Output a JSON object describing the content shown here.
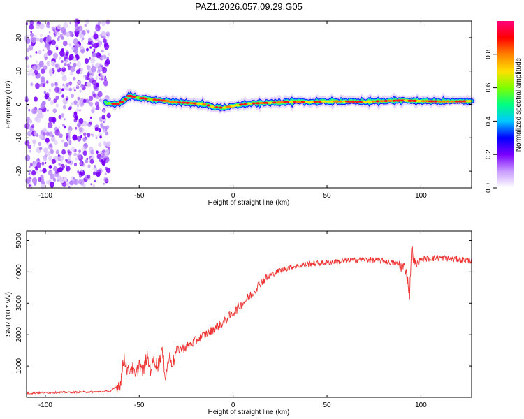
{
  "title": "PAZ1.2026.057.09.29.G05",
  "chart_data": [
    {
      "type": "heatmap",
      "name": "spectrogram",
      "xlabel": "Height of straight line (km)",
      "ylabel": "Frequency (Hz)",
      "xlim": [
        -110,
        127
      ],
      "ylim": [
        -25,
        25
      ],
      "xticks": [
        -100,
        -50,
        0,
        50,
        100
      ],
      "yticks": [
        -20,
        -10,
        0,
        10,
        20
      ],
      "noise_region_x": [
        -110,
        -66
      ],
      "ridge": {
        "x": [
          -68,
          -62,
          -58,
          -55,
          -50,
          -45,
          -40,
          -35,
          -30,
          -25,
          -20,
          -15,
          -10,
          -5,
          0,
          5,
          10,
          15,
          20,
          25,
          30,
          40,
          50,
          60,
          70,
          80,
          90,
          100,
          110,
          120,
          127
        ],
        "freq": [
          0.5,
          0.0,
          1.2,
          2.5,
          2.0,
          1.5,
          1.3,
          1.0,
          0.6,
          0.5,
          0.3,
          0.0,
          -0.8,
          -1.0,
          -0.5,
          0.0,
          0.3,
          0.4,
          0.5,
          0.6,
          0.8,
          0.8,
          0.9,
          0.9,
          0.8,
          1.0,
          1.2,
          1.0,
          0.9,
          0.9,
          1.0
        ]
      },
      "colorbar": {
        "label": "Normalized spectral amplitude",
        "range": [
          0,
          1
        ],
        "ticks": [
          "0.0",
          "0.2",
          "0.4",
          "0.6",
          "0.8"
        ],
        "tick_values": [
          0.0,
          0.2,
          0.4,
          0.6,
          0.8
        ],
        "colors": [
          "#ffffff",
          "#c89bff",
          "#7a00ff",
          "#0000ff",
          "#00c8ff",
          "#00ff80",
          "#80ff00",
          "#ffe000",
          "#ff8000",
          "#ff0000",
          "#ff0080"
        ]
      }
    },
    {
      "type": "line",
      "name": "snr",
      "xlabel": "Height of straight line (km)",
      "ylabel": "SNR (10 * v/v)",
      "xlim": [
        -110,
        127
      ],
      "ylim": [
        0,
        5300
      ],
      "xticks": [
        -100,
        -50,
        0,
        50,
        100
      ],
      "yticks": [
        1000,
        2000,
        3000,
        4000,
        5000
      ],
      "color": "#ee3333",
      "series": [
        {
          "name": "SNR",
          "x": [
            -110,
            -100,
            -90,
            -80,
            -70,
            -65,
            -60,
            -58,
            -56,
            -54,
            -52,
            -50,
            -48,
            -46,
            -44,
            -42,
            -40,
            -38,
            -36,
            -34,
            -32,
            -30,
            -25,
            -20,
            -15,
            -10,
            -5,
            0,
            5,
            10,
            15,
            20,
            25,
            30,
            40,
            50,
            60,
            70,
            80,
            88,
            92,
            94,
            95,
            97,
            100,
            110,
            120,
            127
          ],
          "values": [
            130,
            150,
            160,
            170,
            180,
            200,
            450,
            1300,
            800,
            1000,
            600,
            1100,
            800,
            1300,
            900,
            1200,
            1000,
            1500,
            700,
            1300,
            1100,
            1500,
            1600,
            1800,
            2000,
            2200,
            2400,
            2700,
            3000,
            3300,
            3700,
            3900,
            4050,
            4150,
            4250,
            4300,
            4350,
            4400,
            4350,
            4250,
            4100,
            3300,
            4800,
            4200,
            4400,
            4450,
            4400,
            4350
          ]
        }
      ]
    }
  ]
}
